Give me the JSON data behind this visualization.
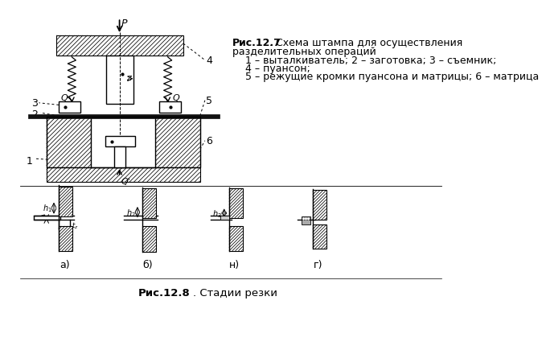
{
  "bg_color": "#ffffff",
  "line_color": "#000000",
  "title_bold": "Рис.12.7",
  "title_rest": ". Схема штампа для осуществления",
  "title_line2": "разделительных операций",
  "legend_lines": [
    "    1 – выталкиватель; 2 – заготовка; 3 – съемник;",
    "    4 – пуансон;",
    "    5 – режущие кромки пуансона и матрицы; 6 – матрица"
  ],
  "caption2_bold": "Рис.12.8",
  "caption2_normal": ". Стадии резки",
  "sub_labels": [
    "а)",
    "б)",
    "н)",
    "г)"
  ]
}
